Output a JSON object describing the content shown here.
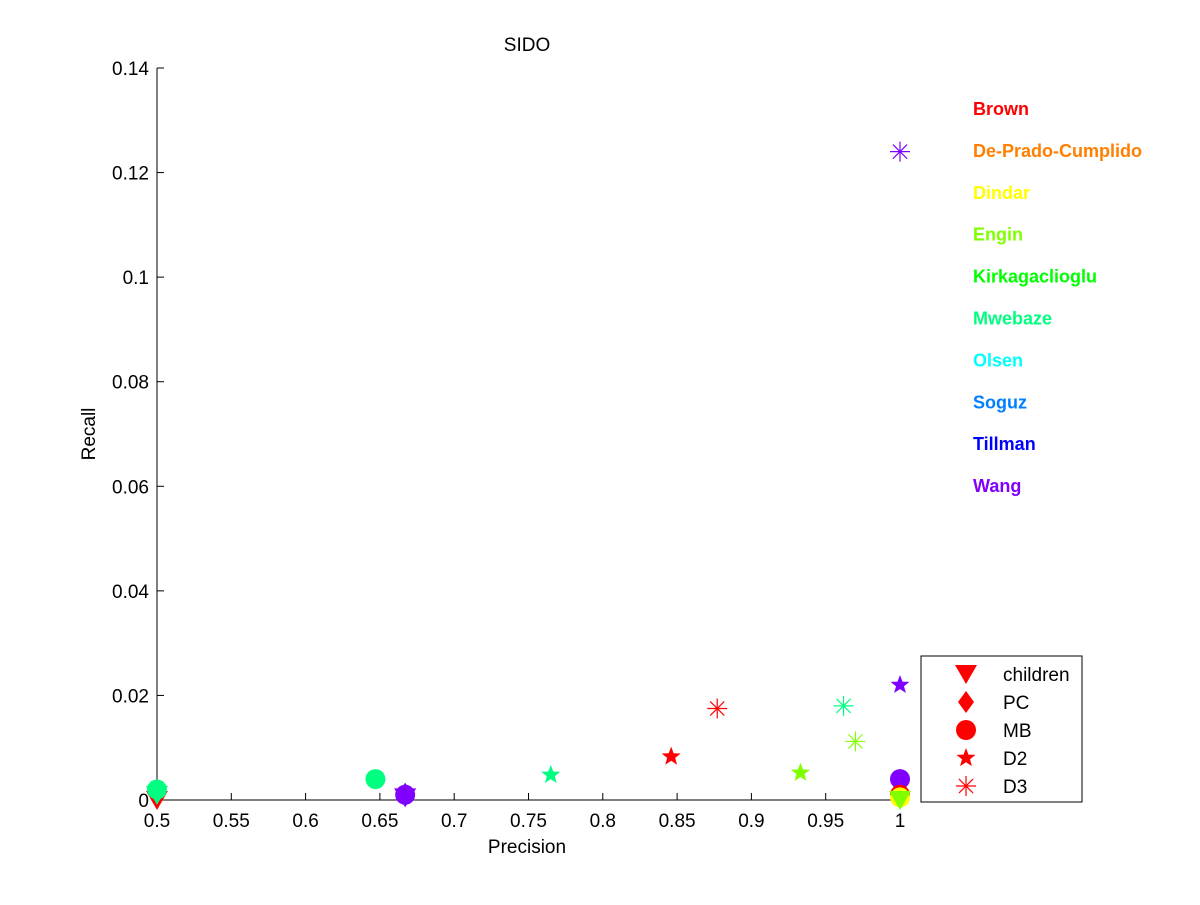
{
  "chart_data": {
    "type": "scatter",
    "title": "SIDO",
    "xlabel": "Precision",
    "ylabel": "Recall",
    "xlim": [
      0.5,
      1.0
    ],
    "ylim": [
      0,
      0.14
    ],
    "x_ticks": [
      0.5,
      0.55,
      0.6,
      0.65,
      0.7,
      0.75,
      0.8,
      0.85,
      0.9,
      0.95,
      1
    ],
    "x_tick_labels": [
      "0.5",
      "0.55",
      "0.6",
      "0.65",
      "0.7",
      "0.75",
      "0.8",
      "0.85",
      "0.9",
      "0.95",
      "1"
    ],
    "y_ticks": [
      0,
      0.02,
      0.04,
      0.06,
      0.08,
      0.1,
      0.12,
      0.14
    ],
    "y_tick_labels": [
      "0",
      "0.02",
      "0.04",
      "0.06",
      "0.08",
      "0.1",
      "0.12",
      "0.14"
    ],
    "grid": false,
    "teams": [
      {
        "name": "Brown",
        "color": "#ff0000"
      },
      {
        "name": "De-Prado-Cumplido",
        "color": "#ff7f00"
      },
      {
        "name": "Dindar",
        "color": "#ffff00"
      },
      {
        "name": "Engin",
        "color": "#80ff00"
      },
      {
        "name": "Kirkagaclioglu",
        "color": "#00ff00"
      },
      {
        "name": "Mwebaze",
        "color": "#00ff80"
      },
      {
        "name": "Olsen",
        "color": "#00ffff"
      },
      {
        "name": "Soguz",
        "color": "#0080ff"
      },
      {
        "name": "Tillman",
        "color": "#0000ff"
      },
      {
        "name": "Wang",
        "color": "#8000ff"
      }
    ],
    "team_legend_placement": "right",
    "marker_legend": {
      "placement": "bottom-right",
      "color": "#ff0000",
      "entries": [
        {
          "label": "children",
          "marker": "triangle-down"
        },
        {
          "label": "PC",
          "marker": "diamond"
        },
        {
          "label": "MB",
          "marker": "circle"
        },
        {
          "label": "D2",
          "marker": "star"
        },
        {
          "label": "D3",
          "marker": "asterisk"
        }
      ]
    },
    "points": [
      {
        "team": "Brown",
        "marker": "triangle-down",
        "x": 0.5,
        "y": 0.0
      },
      {
        "team": "Mwebaze",
        "marker": "triangle-down",
        "x": 0.5,
        "y": 0.001
      },
      {
        "team": "Mwebaze",
        "marker": "circle",
        "x": 0.5,
        "y": 0.002
      },
      {
        "team": "Mwebaze",
        "marker": "circle",
        "x": 0.647,
        "y": 0.004
      },
      {
        "team": "Wang",
        "marker": "circle",
        "x": 0.667,
        "y": 0.001
      },
      {
        "team": "Wang",
        "marker": "triangle-down",
        "x": 0.667,
        "y": 0.0005
      },
      {
        "team": "Wang",
        "marker": "diamond",
        "x": 0.667,
        "y": 0.0012
      },
      {
        "team": "Mwebaze",
        "marker": "star",
        "x": 0.765,
        "y": 0.0048
      },
      {
        "team": "Brown",
        "marker": "star",
        "x": 0.846,
        "y": 0.0083
      },
      {
        "team": "Brown",
        "marker": "asterisk",
        "x": 0.877,
        "y": 0.0175
      },
      {
        "team": "Engin",
        "marker": "star",
        "x": 0.933,
        "y": 0.0052
      },
      {
        "team": "Mwebaze",
        "marker": "asterisk",
        "x": 0.962,
        "y": 0.018
      },
      {
        "team": "Engin",
        "marker": "asterisk",
        "x": 0.97,
        "y": 0.0112
      },
      {
        "team": "Wang",
        "marker": "star",
        "x": 1.0,
        "y": 0.022
      },
      {
        "team": "Wang",
        "marker": "asterisk",
        "x": 1.0,
        "y": 0.124
      },
      {
        "team": "Wang",
        "marker": "circle",
        "x": 1.0,
        "y": 0.004
      },
      {
        "team": "Brown",
        "marker": "circle",
        "x": 1.0,
        "y": 0.001
      },
      {
        "team": "Dindar",
        "marker": "circle",
        "x": 1.0,
        "y": 0.0005
      },
      {
        "team": "Engin",
        "marker": "triangle-down",
        "x": 1.0,
        "y": 0.0
      }
    ]
  }
}
